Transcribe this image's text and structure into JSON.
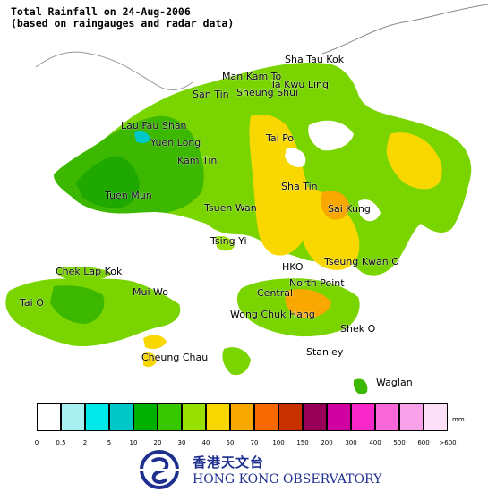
{
  "title_line1": "Total Rainfall on 24-Aug-2006",
  "title_line2": "(based on raingauges and radar data)",
  "places": [
    {
      "id": "sha-tau-kok",
      "label": "Sha Tau Kok"
    },
    {
      "id": "man-kam-to",
      "label": "Man Kam To"
    },
    {
      "id": "ta-kwu-ling",
      "label": "Ta Kwu Ling"
    },
    {
      "id": "san-tin",
      "label": "San Tin"
    },
    {
      "id": "sheung-shui",
      "label": "Sheung Shui"
    },
    {
      "id": "lau-fau-shan",
      "label": "Lau Fau Shan"
    },
    {
      "id": "yuen-long",
      "label": "Yuen Long"
    },
    {
      "id": "tai-po",
      "label": "Tai Po"
    },
    {
      "id": "kam-tin",
      "label": "Kam Tin"
    },
    {
      "id": "tuen-mun",
      "label": "Tuen Mun"
    },
    {
      "id": "sha-tin",
      "label": "Sha Tin"
    },
    {
      "id": "tsuen-wan",
      "label": "Tsuen Wan"
    },
    {
      "id": "sai-kung",
      "label": "Sai Kung"
    },
    {
      "id": "tsing-yi",
      "label": "Tsing Yi"
    },
    {
      "id": "hko",
      "label": "HKO"
    },
    {
      "id": "tseung-kwan-o",
      "label": "Tseung Kwan O"
    },
    {
      "id": "chek-lap-kok",
      "label": "Chek Lap Kok"
    },
    {
      "id": "north-point",
      "label": "North Point"
    },
    {
      "id": "mui-wo",
      "label": "Mui Wo"
    },
    {
      "id": "central",
      "label": "Central"
    },
    {
      "id": "tai-o",
      "label": "Tai O"
    },
    {
      "id": "wong-chuk-hang",
      "label": "Wong Chuk Hang"
    },
    {
      "id": "shek-o",
      "label": "Shek O"
    },
    {
      "id": "cheung-chau",
      "label": "Cheung Chau"
    },
    {
      "id": "stanley",
      "label": "Stanley"
    },
    {
      "id": "waglan",
      "label": "Waglan"
    }
  ],
  "legend": {
    "unit": "mm",
    "colors": [
      "#ffffff",
      "#a8f0f0",
      "#00e8e8",
      "#00c8c8",
      "#00b000",
      "#38c800",
      "#98e000",
      "#f8d800",
      "#f8a800",
      "#f86800",
      "#c83000",
      "#980058",
      "#d000a0",
      "#f828c8",
      "#f868d8",
      "#f8a0e8",
      "#fce0f8"
    ],
    "ticks": [
      "0",
      "0.5",
      "2",
      "5",
      "10",
      "20",
      "30",
      "40",
      "50",
      "70",
      "100",
      "150",
      "200",
      "300",
      "400",
      "500",
      "600",
      ">600"
    ]
  },
  "logo": {
    "chinese": "香港天文台",
    "english": "HONG KONG OBSERVATORY"
  }
}
